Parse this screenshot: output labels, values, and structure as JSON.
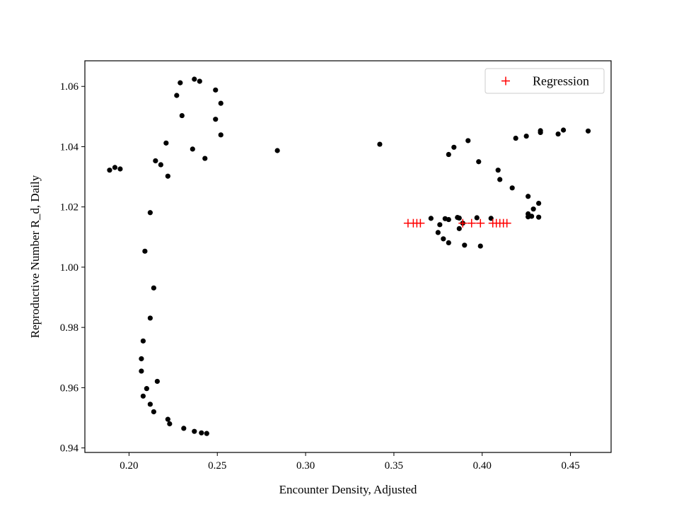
{
  "chart_data": {
    "type": "scatter",
    "title": "",
    "xlabel": "Encounter Density, Adjusted",
    "ylabel": "Reproductive Number R_d, Daily",
    "xlim": [
      0.175,
      0.473
    ],
    "ylim": [
      0.9385,
      1.0685
    ],
    "x_ticks": [
      0.2,
      0.25,
      0.3,
      0.35,
      0.4,
      0.45
    ],
    "x_tick_labels": [
      "0.20",
      "0.25",
      "0.30",
      "0.35",
      "0.40",
      "0.45"
    ],
    "y_ticks": [
      0.94,
      0.96,
      0.98,
      1.0,
      1.02,
      1.04,
      1.06
    ],
    "y_tick_labels": [
      "0.94",
      "0.96",
      "0.98",
      "1.00",
      "1.02",
      "1.04",
      "1.06"
    ],
    "grid": false,
    "legend": {
      "placement": "top-right",
      "entries": [
        "Regression"
      ]
    },
    "series": [
      {
        "marker": "dot",
        "color": "#000000",
        "points": [
          [
            0.189,
            1.0322
          ],
          [
            0.192,
            1.0331
          ],
          [
            0.195,
            1.0326
          ],
          [
            0.209,
            1.0053
          ],
          [
            0.212,
            1.0181
          ],
          [
            0.214,
            0.9931
          ],
          [
            0.212,
            0.9831
          ],
          [
            0.208,
            0.9755
          ],
          [
            0.207,
            0.9696
          ],
          [
            0.207,
            0.9655
          ],
          [
            0.216,
            0.9621
          ],
          [
            0.21,
            0.9597
          ],
          [
            0.208,
            0.9572
          ],
          [
            0.212,
            0.9545
          ],
          [
            0.214,
            0.952
          ],
          [
            0.222,
            0.9495
          ],
          [
            0.223,
            0.948
          ],
          [
            0.231,
            0.9465
          ],
          [
            0.237,
            0.9455
          ],
          [
            0.241,
            0.945
          ],
          [
            0.244,
            0.9448
          ],
          [
            0.215,
            1.0353
          ],
          [
            0.218,
            1.034
          ],
          [
            0.221,
            1.0412
          ],
          [
            0.222,
            1.0302
          ],
          [
            0.227,
            1.057
          ],
          [
            0.229,
            1.0612
          ],
          [
            0.23,
            1.0503
          ],
          [
            0.236,
            1.0392
          ],
          [
            0.237,
            1.0624
          ],
          [
            0.24,
            1.0617
          ],
          [
            0.243,
            1.0361
          ],
          [
            0.249,
            1.0588
          ],
          [
            0.249,
            1.0491
          ],
          [
            0.252,
            1.0544
          ],
          [
            0.252,
            1.0439
          ],
          [
            0.284,
            1.0387
          ],
          [
            0.342,
            1.0408
          ],
          [
            0.371,
            1.0162
          ],
          [
            0.375,
            1.0115
          ],
          [
            0.376,
            1.0141
          ],
          [
            0.378,
            1.0094
          ],
          [
            0.379,
            1.0161
          ],
          [
            0.381,
            1.0081
          ],
          [
            0.381,
            1.0374
          ],
          [
            0.381,
            1.0158
          ],
          [
            0.384,
            1.0398
          ],
          [
            0.386,
            1.0165
          ],
          [
            0.387,
            1.0128
          ],
          [
            0.387,
            1.0163
          ],
          [
            0.389,
            1.0146
          ],
          [
            0.39,
            1.0073
          ],
          [
            0.392,
            1.042
          ],
          [
            0.397,
            1.0164
          ],
          [
            0.398,
            1.035
          ],
          [
            0.399,
            1.007
          ],
          [
            0.405,
            1.0162
          ],
          [
            0.409,
            1.0322
          ],
          [
            0.41,
            1.0291
          ],
          [
            0.417,
            1.0263
          ],
          [
            0.419,
            1.0428
          ],
          [
            0.425,
            1.0435
          ],
          [
            0.426,
            1.0235
          ],
          [
            0.426,
            1.0177
          ],
          [
            0.426,
            1.0167
          ],
          [
            0.428,
            1.0169
          ],
          [
            0.429,
            1.0193
          ],
          [
            0.432,
            1.0212
          ],
          [
            0.432,
            1.0166
          ],
          [
            0.433,
            1.0447
          ],
          [
            0.433,
            1.0453
          ],
          [
            0.443,
            1.0442
          ],
          [
            0.446,
            1.0455
          ],
          [
            0.46,
            1.0452
          ]
        ]
      },
      {
        "name": "Regression",
        "marker": "plus",
        "color": "#ff0000",
        "points": [
          [
            0.358,
            1.0146
          ],
          [
            0.361,
            1.0146
          ],
          [
            0.363,
            1.0146
          ],
          [
            0.365,
            1.0146
          ],
          [
            0.389,
            1.0146
          ],
          [
            0.394,
            1.0146
          ],
          [
            0.399,
            1.0146
          ],
          [
            0.406,
            1.0146
          ],
          [
            0.408,
            1.0146
          ],
          [
            0.41,
            1.0146
          ],
          [
            0.412,
            1.0146
          ],
          [
            0.414,
            1.0146
          ]
        ]
      }
    ]
  }
}
